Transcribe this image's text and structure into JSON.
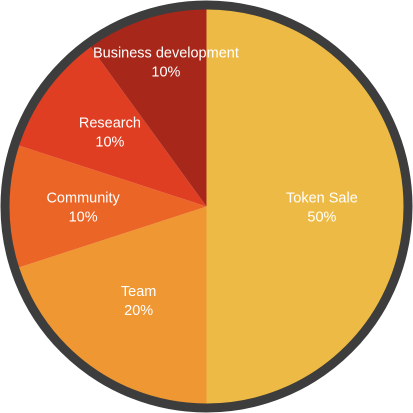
{
  "chart_data": {
    "type": "pie",
    "start_angle_deg": 0,
    "direction": "clockwise",
    "slices": [
      {
        "label": "Token Sale",
        "percent_label": "50%",
        "value": 50,
        "color": "#EDBB45"
      },
      {
        "label": "Team",
        "percent_label": "20%",
        "value": 20,
        "color": "#EE9733"
      },
      {
        "label": "Community",
        "percent_label": "10%",
        "value": 10,
        "color": "#EA6526"
      },
      {
        "label": "Research",
        "percent_label": "10%",
        "value": 10,
        "color": "#DF3E22"
      },
      {
        "label": "Business development",
        "percent_label": "10%",
        "value": 10,
        "color": "#A7281A"
      }
    ],
    "border_color": "#3D3D3D"
  }
}
